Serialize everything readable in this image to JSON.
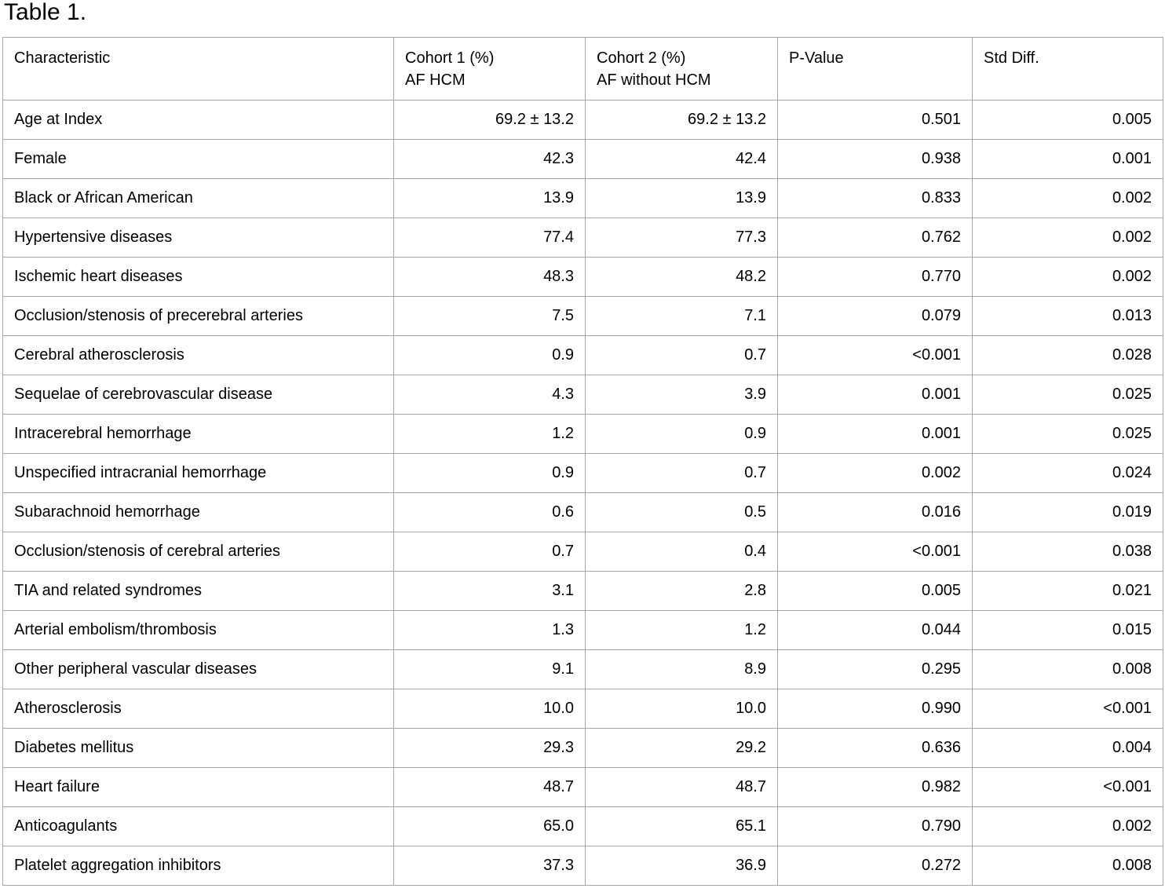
{
  "page": {
    "title": "Table 1."
  },
  "colors": {
    "background": "#ffffff",
    "text": "#000000",
    "border": "#a6a6a6"
  },
  "table": {
    "columns": [
      {
        "key": "characteristic",
        "label": "Characteristic",
        "sublabel": "",
        "align": "left"
      },
      {
        "key": "cohort1",
        "label": "Cohort 1 (%)",
        "sublabel": "AF HCM",
        "align": "right"
      },
      {
        "key": "cohort2",
        "label": "Cohort 2 (%)",
        "sublabel": "AF without HCM",
        "align": "right"
      },
      {
        "key": "pvalue",
        "label": "P-Value",
        "sublabel": "",
        "align": "right"
      },
      {
        "key": "stddiff",
        "label": "Std Diff.",
        "sublabel": "",
        "align": "right"
      }
    ],
    "rows": [
      [
        "Age at Index",
        "69.2 ± 13.2",
        "69.2 ± 13.2",
        "0.501",
        "0.005"
      ],
      [
        "Female",
        "42.3",
        "42.4",
        "0.938",
        "0.001"
      ],
      [
        "Black or African American",
        "13.9",
        "13.9",
        "0.833",
        "0.002"
      ],
      [
        "Hypertensive diseases",
        "77.4",
        "77.3",
        "0.762",
        "0.002"
      ],
      [
        "Ischemic heart diseases",
        "48.3",
        "48.2",
        "0.770",
        "0.002"
      ],
      [
        "Occlusion/stenosis of precerebral arteries",
        "7.5",
        "7.1",
        "0.079",
        "0.013"
      ],
      [
        "Cerebral atherosclerosis",
        "0.9",
        "0.7",
        "<0.001",
        "0.028"
      ],
      [
        "Sequelae of cerebrovascular disease",
        "4.3",
        "3.9",
        "0.001",
        "0.025"
      ],
      [
        "Intracerebral hemorrhage",
        "1.2",
        "0.9",
        "0.001",
        "0.025"
      ],
      [
        "Unspecified intracranial hemorrhage",
        "0.9",
        "0.7",
        "0.002",
        "0.024"
      ],
      [
        "Subarachnoid hemorrhage",
        "0.6",
        "0.5",
        "0.016",
        "0.019"
      ],
      [
        "Occlusion/stenosis of cerebral arteries",
        "0.7",
        "0.4",
        "<0.001",
        "0.038"
      ],
      [
        "TIA and related syndromes",
        "3.1",
        "2.8",
        "0.005",
        "0.021"
      ],
      [
        "Arterial embolism/thrombosis",
        "1.3",
        "1.2",
        "0.044",
        "0.015"
      ],
      [
        "Other peripheral vascular diseases",
        "9.1",
        "8.9",
        "0.295",
        "0.008"
      ],
      [
        "Atherosclerosis",
        "10.0",
        "10.0",
        "0.990",
        "<0.001"
      ],
      [
        "Diabetes mellitus",
        "29.3",
        "29.2",
        "0.636",
        "0.004"
      ],
      [
        "Heart failure",
        "48.7",
        "48.7",
        "0.982",
        "<0.001"
      ],
      [
        "Anticoagulants",
        "65.0",
        "65.1",
        "0.790",
        "0.002"
      ],
      [
        "Platelet aggregation inhibitors",
        "37.3",
        "36.9",
        "0.272",
        "0.008"
      ]
    ]
  }
}
